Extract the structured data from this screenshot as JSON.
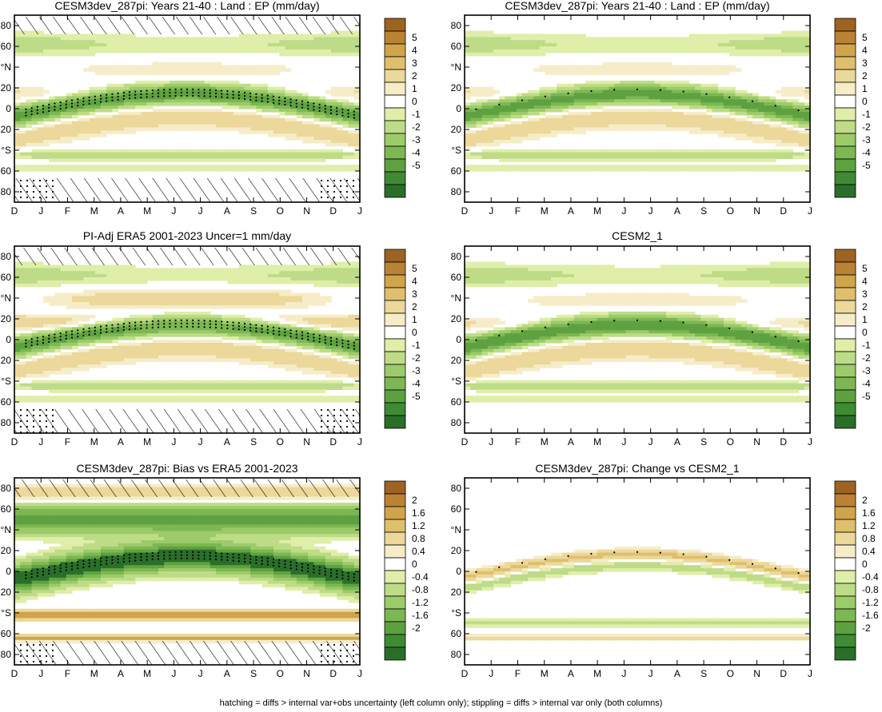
{
  "figure": {
    "footer": "hatching = diffs > internal var+obs uncertainty (left column only); stippling = diffs > internal var only (both columns)"
  },
  "axes_labels": {
    "months": [
      "D",
      "J",
      "F",
      "M",
      "A",
      "M",
      "J",
      "J",
      "A",
      "S",
      "O",
      "N",
      "D",
      "J"
    ],
    "lat_ticks": [
      "80",
      "60",
      "°N",
      "20",
      "0",
      "20",
      "°S",
      "60",
      "80"
    ]
  },
  "colorbars": {
    "absolute": {
      "labels": [
        "5",
        "4",
        "3",
        "2",
        "1",
        "0",
        "-1",
        "-2",
        "-3",
        "-4",
        "-5"
      ],
      "colors": [
        "#9c6323",
        "#ba8233",
        "#d0a44a",
        "#dfbf6d",
        "#ebd89a",
        "#f6ecc8",
        "#ffffff",
        "#dfeea8",
        "#bedb87",
        "#9ccb69",
        "#7cb752",
        "#5ea140",
        "#3f8b33",
        "#2a6e2a"
      ]
    },
    "difference": {
      "labels": [
        "2",
        "1.6",
        "1.2",
        "0.8",
        "0.4",
        "0",
        "-0.4",
        "-0.8",
        "-1.2",
        "-1.6",
        "-2"
      ],
      "colors": [
        "#9c6323",
        "#ba8233",
        "#d0a44a",
        "#dfbf6d",
        "#ebd89a",
        "#f6ecc8",
        "#ffffff",
        "#dfeea8",
        "#bedb87",
        "#9ccb69",
        "#7cb752",
        "#5ea140",
        "#3f8b33",
        "#2a6e2a"
      ]
    }
  },
  "panels": [
    {
      "title": "CESM3dev_287pi: Years 21-40 : Land : EP (mm/day)",
      "colorbar": "absolute",
      "field": "model",
      "hatching": true,
      "stipple": "dense"
    },
    {
      "title": "CESM3dev_287pi: Years 21-40 : Land : EP (mm/day)",
      "colorbar": "absolute",
      "field": "model",
      "hatching": false,
      "stipple": "sparse"
    },
    {
      "title": "PI-Adj ERA5 2001-2023 Uncer=1 mm/day",
      "colorbar": "absolute",
      "field": "obs",
      "hatching": true,
      "stipple": "dense"
    },
    {
      "title": "CESM2_1",
      "colorbar": "absolute",
      "field": "cesm2",
      "hatching": false,
      "stipple": "sparse"
    },
    {
      "title": "CESM3dev_287pi: Bias vs ERA5 2001-2023",
      "colorbar": "difference",
      "field": "bias",
      "hatching": true,
      "stipple": "dense"
    },
    {
      "title": "CESM3dev_287pi: Change vs CESM2_1",
      "colorbar": "difference",
      "field": "change",
      "hatching": false,
      "stipple": "sparse"
    }
  ],
  "chart_data": {
    "type": "heatmap",
    "description_units": "mm/day",
    "x": [
      "D",
      "J",
      "F",
      "M",
      "A",
      "M",
      "J",
      "J",
      "A",
      "S",
      "O",
      "N",
      "D",
      "J"
    ],
    "y_latitude_range": [
      -90,
      90
    ],
    "absolute_levels": [
      -5,
      -4,
      -3,
      -2,
      -1,
      0,
      1,
      2,
      3,
      4,
      5
    ],
    "difference_levels": [
      -2,
      -1.6,
      -1.2,
      -0.8,
      -0.4,
      0,
      0.4,
      0.8,
      1.2,
      1.6,
      2
    ]
  }
}
